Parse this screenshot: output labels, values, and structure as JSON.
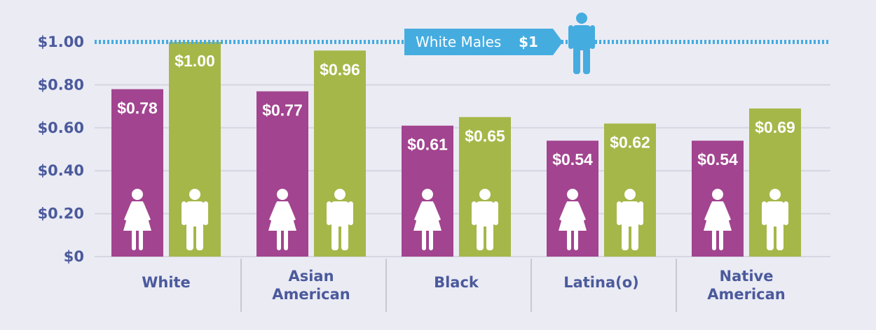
{
  "chart_data": {
    "type": "bar",
    "categories": [
      [
        "White"
      ],
      [
        "Asian",
        "American"
      ],
      [
        "Black"
      ],
      [
        "Latina(o)"
      ],
      [
        "Native",
        "American"
      ]
    ],
    "series": [
      {
        "values": [
          0.78,
          0.77,
          0.61,
          0.54,
          0.54
        ],
        "labels": [
          "$0.78",
          "$0.77",
          "$0.61",
          "$0.54",
          "$0.54"
        ],
        "color": "#a2448f",
        "icon": "female-icon"
      },
      {
        "values": [
          1.0,
          0.96,
          0.65,
          0.62,
          0.69
        ],
        "labels": [
          "$1.00",
          "$0.96",
          "$0.65",
          "$0.62",
          "$0.69"
        ],
        "color": "#a5b748",
        "icon": "male-icon"
      }
    ],
    "ylim": [
      0,
      1.0
    ],
    "yticks": [
      0,
      0.2,
      0.4,
      0.6,
      0.8,
      1.0
    ],
    "ytick_labels": [
      "$0",
      "$0.20",
      "$0.40",
      "$0.60",
      "$0.80",
      "$1.00"
    ],
    "grid": true,
    "reference_line": {
      "value": 1.0,
      "label": "White Males",
      "value_label": "$1",
      "color": "#45ace0",
      "icon": "male-icon"
    }
  },
  "colors": {
    "background": "#ebebf4",
    "axis_text": "#4b5a9c",
    "grid": "#d6d6e2",
    "divider": "#c8c8d2"
  }
}
